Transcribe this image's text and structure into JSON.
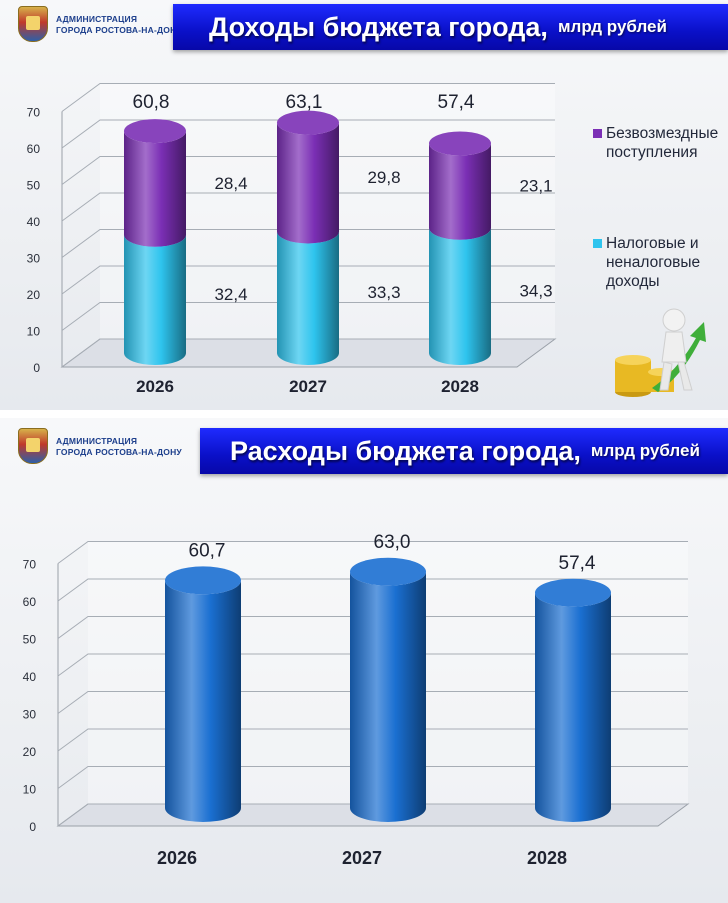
{
  "org": {
    "line1": "АДМИНИСТРАЦИЯ",
    "line2": "ГОРОДА РОСТОВА-НА-ДОНУ"
  },
  "income": {
    "title": "Доходы бюджета города,",
    "unit": "млрд рублей",
    "legend": [
      {
        "label": "Безвозмездные поступления",
        "color": "#7b2fb5"
      },
      {
        "label": "Налоговые и неналоговые доходы",
        "color": "#2ec4ee"
      }
    ]
  },
  "expense": {
    "title": "Расходы бюджета города,",
    "unit": "млрд рублей"
  },
  "chart_data": [
    {
      "type": "bar",
      "stacked": true,
      "categories": [
        "2026",
        "2027",
        "2028"
      ],
      "series": [
        {
          "name": "Налоговые и неналоговые доходы",
          "values": [
            32.4,
            33.3,
            34.3
          ],
          "labels": [
            "32,4",
            "33,3",
            "34,3"
          ],
          "color": "#2ec4ee"
        },
        {
          "name": "Безвозмездные поступления",
          "values": [
            28.4,
            29.8,
            23.1
          ],
          "labels": [
            "28,4",
            "29,8",
            "23,1"
          ],
          "color": "#7b2fb5"
        }
      ],
      "totals": [
        60.8,
        63.1,
        57.4
      ],
      "total_labels": [
        "60,8",
        "63,1",
        "57,4"
      ],
      "title": "Доходы бюджета города, млрд рублей",
      "ylim": [
        0,
        70
      ],
      "yticks": [
        "0",
        "10",
        "20",
        "30",
        "40",
        "50",
        "60",
        "70"
      ],
      "grid": true,
      "legend": "right"
    },
    {
      "type": "bar",
      "categories": [
        "2026",
        "2027",
        "2028"
      ],
      "values": [
        60.7,
        63.0,
        57.4
      ],
      "value_labels": [
        "60,7",
        "63,0",
        "57,4"
      ],
      "color": "#1a6fd1",
      "title": "Расходы бюджета города, млрд рублей",
      "ylim": [
        0,
        70
      ],
      "yticks": [
        "0",
        "10",
        "20",
        "30",
        "40",
        "50",
        "60",
        "70"
      ],
      "grid": true
    }
  ]
}
